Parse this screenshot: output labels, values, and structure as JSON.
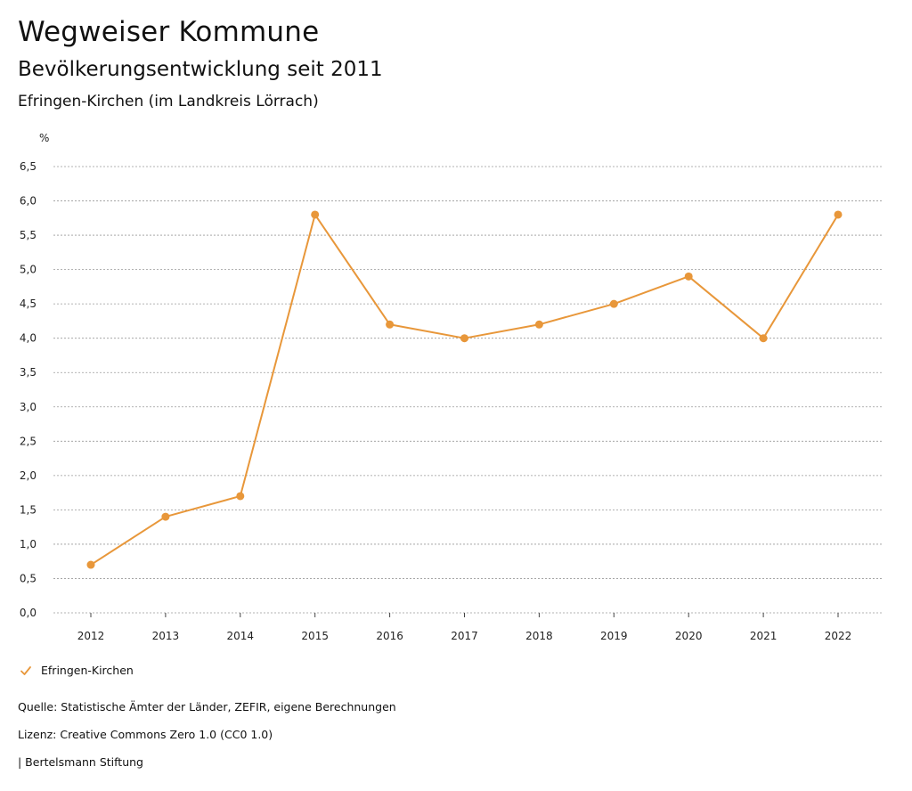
{
  "header": {
    "title": "Wegweiser Kommune",
    "subtitle": "Bevölkerungsentwicklung seit 2011",
    "region": "Efringen-Kirchen (im Landkreis Lörrach)"
  },
  "chart_data": {
    "type": "line",
    "ylabel": "%",
    "x": [
      "2012",
      "2013",
      "2014",
      "2015",
      "2016",
      "2017",
      "2018",
      "2019",
      "2020",
      "2021",
      "2022"
    ],
    "series": [
      {
        "name": "Efringen-Kirchen",
        "color": "#E8973A",
        "values": [
          0.7,
          1.4,
          1.7,
          5.8,
          4.2,
          4.0,
          4.2,
          4.5,
          4.9,
          4.0,
          5.8
        ]
      }
    ],
    "ylim": [
      0,
      6.5
    ],
    "yticks": [
      "0,0",
      "0,5",
      "1,0",
      "1,5",
      "2,0",
      "2,5",
      "3,0",
      "3,5",
      "4,0",
      "4,5",
      "5,0",
      "5,5",
      "6,0",
      "6,5"
    ],
    "grid": true,
    "legend_position": "bottom-left"
  },
  "legend": {
    "label": "Efringen-Kirchen",
    "icon": "check-icon"
  },
  "footer": {
    "source": "Quelle: Statistische Ämter der Länder, ZEFIR, eigene Berechnungen",
    "license": "Lizenz: Creative Commons Zero 1.0 (CC0 1.0)",
    "publisher": "| Bertelsmann Stiftung"
  }
}
